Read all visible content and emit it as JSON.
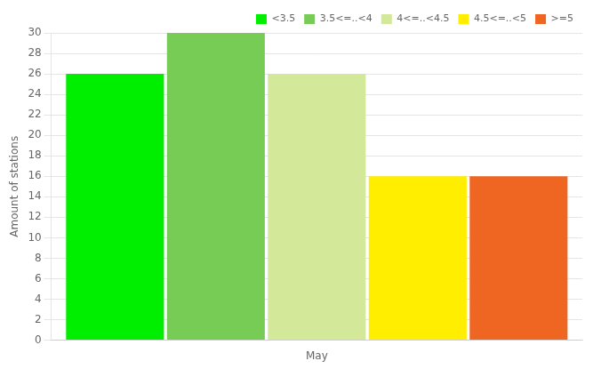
{
  "chart_data": {
    "type": "bar",
    "categories": [
      "May"
    ],
    "series": [
      {
        "name": "<3.5",
        "color": "#00ee00",
        "values": [
          26
        ]
      },
      {
        "name": "3.5<=..<4",
        "color": "#77cc55",
        "values": [
          30
        ]
      },
      {
        "name": "4<=..<4.5",
        "color": "#d4e89a",
        "values": [
          26
        ]
      },
      {
        "name": "4.5<=..<5",
        "color": "#ffee00",
        "values": [
          16
        ]
      },
      {
        "name": ">=5",
        "color": "#ee6622",
        "values": [
          16
        ]
      }
    ],
    "ylabel": "Amount of stations",
    "ylim": [
      0,
      30
    ],
    "yticks": [
      0,
      2,
      4,
      6,
      8,
      10,
      12,
      14,
      16,
      18,
      20,
      22,
      24,
      26,
      28,
      30
    ],
    "grid": true,
    "legend": "upper right"
  }
}
